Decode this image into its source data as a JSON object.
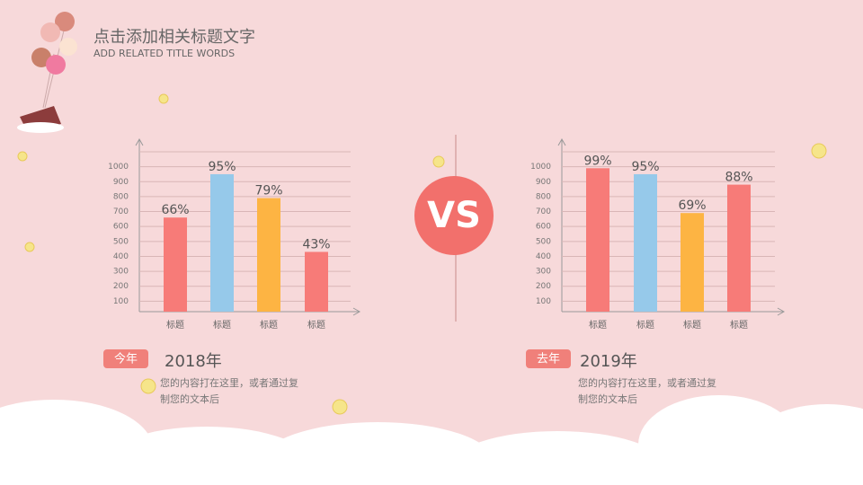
{
  "header": {
    "title": "点击添加相关标题文字",
    "subtitle": "ADD RELATED TITLE WORDS"
  },
  "vs": "VS",
  "chart_data": [
    {
      "type": "bar",
      "categories": [
        "标题",
        "标题",
        "标题",
        "标题"
      ],
      "values": [
        660,
        950,
        790,
        430
      ],
      "value_labels": [
        "66%",
        "95%",
        "79%",
        "43%"
      ],
      "colors": [
        "#f77b78",
        "#96c9ea",
        "#fdb443",
        "#f77b78"
      ],
      "ylim": [
        0,
        1100
      ],
      "yticks": [
        100,
        200,
        300,
        400,
        500,
        600,
        700,
        800,
        900,
        1000
      ],
      "grid": true
    },
    {
      "type": "bar",
      "categories": [
        "标题",
        "标题",
        "标题",
        "标题"
      ],
      "values": [
        990,
        950,
        690,
        880
      ],
      "value_labels": [
        "99%",
        "95%",
        "69%",
        "88%"
      ],
      "colors": [
        "#f77b78",
        "#96c9ea",
        "#fdb443",
        "#f77b78"
      ],
      "ylim": [
        0,
        1100
      ],
      "yticks": [
        100,
        200,
        300,
        400,
        500,
        600,
        700,
        800,
        900,
        1000
      ],
      "grid": true
    }
  ],
  "panels": [
    {
      "tag": "今年",
      "year": "2018年",
      "text": [
        "您的内容打在这里，或者通过复",
        "制您的文本后"
      ]
    },
    {
      "tag": "去年",
      "year": "2019年",
      "text": [
        "您的内容打在这里，或者通过复",
        "制您的文本后"
      ]
    }
  ]
}
